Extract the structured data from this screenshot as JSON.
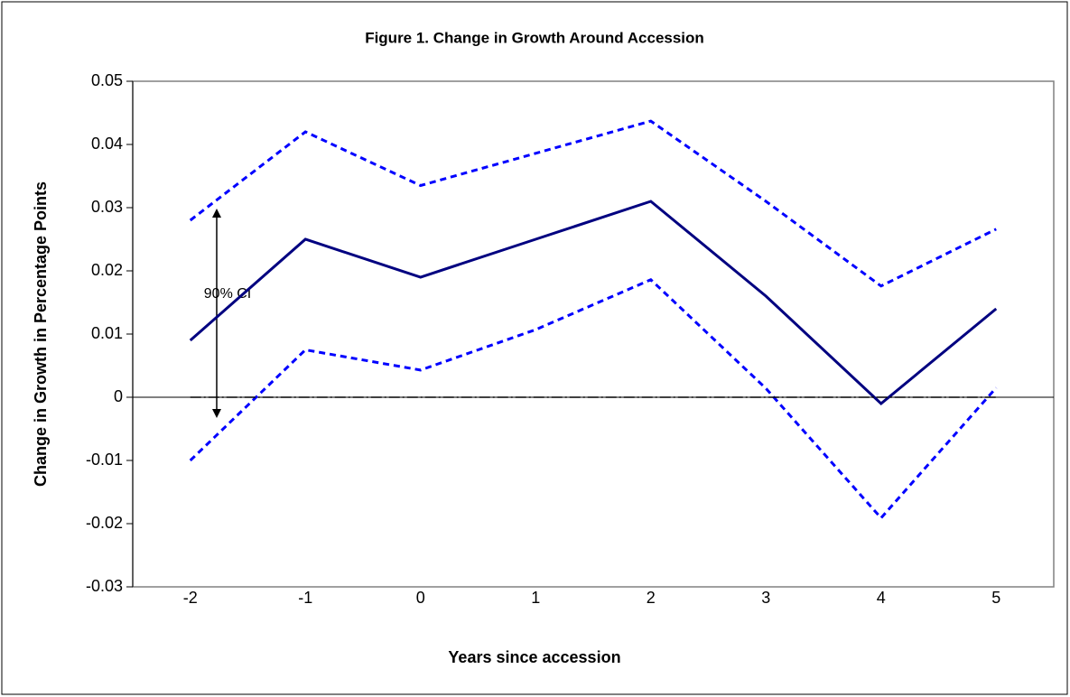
{
  "chart_data": {
    "type": "line",
    "title": "Figure 1. Change in Growth Around Accession",
    "x_label": "Years since accession",
    "y_label": "Change in Growth in Percentage Points",
    "annotation": "90% CI",
    "categories": [
      "-2",
      "-1",
      "0",
      "1",
      "2",
      "3",
      "4",
      "5"
    ],
    "series": [
      {
        "color": "#0000ff",
        "dash": "dashed",
        "values": [
          0.028,
          0.042,
          0.0335,
          0.0386,
          0.0437,
          0.031,
          0.0176,
          0.0266
        ]
      },
      {
        "color": "#000080",
        "dash": "solid",
        "values": [
          0.009,
          0.025,
          0.019,
          0.025,
          0.031,
          0.016,
          -0.001,
          0.014
        ]
      },
      {
        "color": "#0000ff",
        "dash": "dashed",
        "values": [
          -0.01,
          0.0075,
          0.0043,
          0.0107,
          0.0186,
          0.0014,
          -0.0191,
          0.0015
        ]
      },
      {
        "color": "#000000",
        "dash": "dashdot",
        "values": [
          0,
          0,
          0,
          0,
          0,
          0,
          0,
          0
        ]
      }
    ],
    "ylim": [
      -0.03,
      0.05
    ],
    "yticks": [
      -0.03,
      -0.02,
      -0.01,
      0,
      0.01,
      0.02,
      0.03,
      0.04,
      0.05
    ],
    "grid": false
  }
}
